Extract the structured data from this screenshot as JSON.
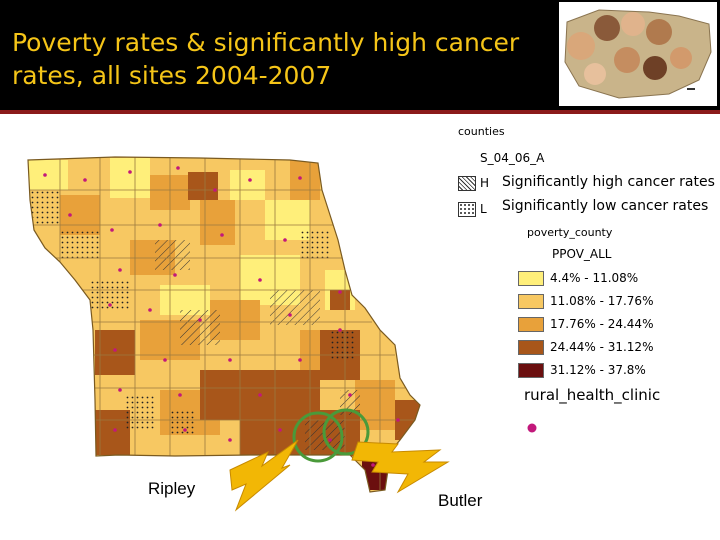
{
  "title": "Poverty rates & significantly high cancer rates, all sites 2004-2007",
  "colors": {
    "header_bg": "#000000",
    "title": "#f5c518",
    "divider": "#8b1a1a",
    "clinic_dot": "#c2187b",
    "circle": "#4a9a3a",
    "bolt": "#f2b705"
  },
  "legend": {
    "layer_counties": "counties",
    "layer_cancer": "S_04_06_A",
    "cancer_items": [
      {
        "code": "H",
        "label": "Significantly high cancer rates",
        "pattern": "hatch"
      },
      {
        "code": "L",
        "label": "Significantly low cancer rates",
        "pattern": "dots"
      }
    ],
    "layer_poverty": "poverty_county",
    "field": "PPOV_ALL",
    "classes": [
      {
        "range": "4.4% - 11.08%",
        "color": "#ffef7a"
      },
      {
        "range": "11.08% - 17.76%",
        "color": "#f7c862"
      },
      {
        "range": "17.76% - 24.44%",
        "color": "#e8a13a"
      },
      {
        "range": "24.44% - 31.12%",
        "color": "#a8561a"
      },
      {
        "range": "31.12% - 37.8%",
        "color": "#6b0f0f"
      }
    ],
    "layer_clinic": "rural_health_clinic"
  },
  "labels": {
    "ripley": "Ripley",
    "butler": "Butler"
  }
}
